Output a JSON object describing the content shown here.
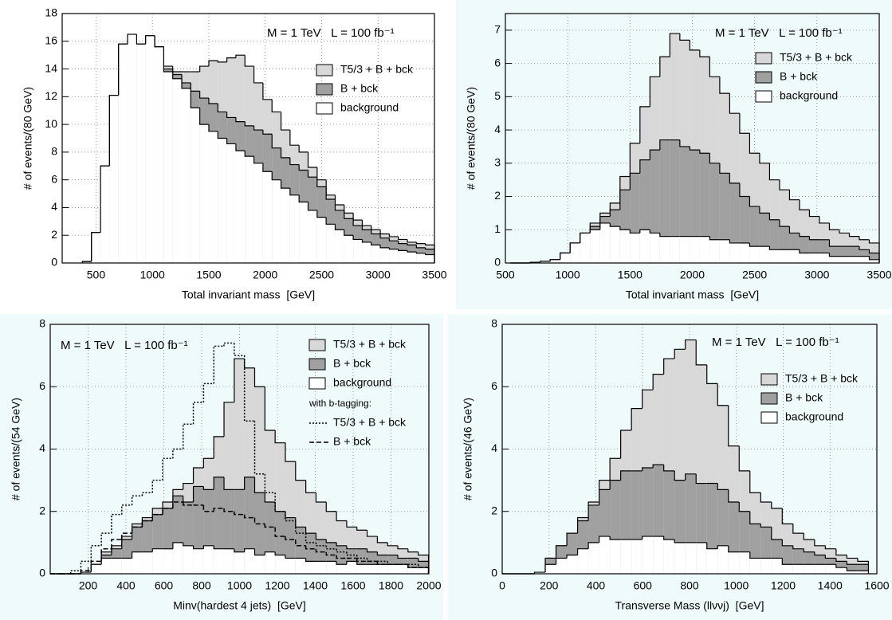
{
  "chart_data": [
    {
      "type": "histogram",
      "annotation": "M = 1 TeV   L = 100 fb⁻¹",
      "xlabel": "Total invariant mass  [GeV]",
      "ylabel": "# of events/(80 GeV)",
      "xlim": [
        200,
        3500
      ],
      "ylim": [
        0,
        18
      ],
      "xticks": [
        500,
        1000,
        1500,
        2000,
        2500,
        3000,
        3500
      ],
      "yticks": [
        0,
        2,
        4,
        6,
        8,
        10,
        12,
        14,
        16,
        18
      ],
      "grid": true,
      "bins": [
        380,
        460,
        540,
        620,
        700,
        780,
        860,
        940,
        1020,
        1100,
        1180,
        1260,
        1340,
        1420,
        1500,
        1580,
        1660,
        1740,
        1820,
        1900,
        1980,
        2060,
        2140,
        2220,
        2300,
        2380,
        2460,
        2540,
        2620,
        2700,
        2780,
        2860,
        2940,
        3020,
        3100,
        3180,
        3260,
        3340,
        3420,
        3500
      ],
      "series": [
        {
          "name": "T5/3 + B + bck",
          "color": "#d8d8d8",
          "style": "fill",
          "values": [
            0.1,
            2.2,
            7,
            12.1,
            15.8,
            16.5,
            15.8,
            16.4,
            15.6,
            14.2,
            13.8,
            13.8,
            13.8,
            14.2,
            14.6,
            14.5,
            14.8,
            15.0,
            14.2,
            13.0,
            11.8,
            10.9,
            9.6,
            8.5,
            8.0,
            6.9,
            6.0,
            4.9,
            4.2,
            3.6,
            3.1,
            2.7,
            2.4,
            2.1,
            1.9,
            1.7,
            1.5,
            1.4,
            1.3
          ]
        },
        {
          "name": "B + bck",
          "color": "#a0a0a0",
          "style": "fill",
          "values": [
            0.1,
            2.2,
            7,
            12.1,
            15.8,
            16.5,
            15.8,
            16.4,
            15.6,
            14.0,
            13.6,
            13.0,
            12.4,
            11.9,
            11.5,
            10.9,
            10.5,
            10.2,
            9.9,
            9.6,
            9.3,
            8.3,
            7.6,
            7.1,
            6.7,
            6.2,
            5.5,
            4.6,
            3.8,
            3.2,
            2.7,
            2.4,
            2.1,
            1.8,
            1.6,
            1.4,
            1.3,
            1.1,
            1.0
          ]
        },
        {
          "name": "background",
          "color": "#ffffff",
          "style": "fill",
          "values": [
            0.1,
            2.2,
            7,
            12.1,
            15.8,
            16.5,
            15.8,
            16.4,
            15.6,
            13.8,
            13.3,
            12.6,
            11.2,
            10.0,
            9.5,
            9.0,
            8.6,
            8.1,
            7.7,
            7.2,
            6.6,
            6.0,
            5.4,
            4.9,
            4.4,
            3.8,
            3.3,
            2.8,
            2.4,
            2.0,
            1.7,
            1.5,
            1.3,
            1.1,
            1.0,
            0.9,
            0.8,
            0.7,
            0.6
          ]
        }
      ]
    },
    {
      "type": "histogram",
      "annotation": "M = 1 TeV   L = 100 fb⁻¹",
      "xlabel": "Total invariant mass  [GeV]",
      "ylabel": "# of events/(80 GeV)",
      "xlim": [
        500,
        3500
      ],
      "ylim": [
        0,
        7.5
      ],
      "xticks": [
        500,
        1000,
        1500,
        2000,
        2500,
        3000,
        3500
      ],
      "yticks": [
        0,
        1,
        2,
        3,
        4,
        5,
        6,
        7
      ],
      "grid": true,
      "bins": [
        540,
        620,
        700,
        780,
        860,
        940,
        1020,
        1100,
        1180,
        1260,
        1340,
        1420,
        1500,
        1580,
        1660,
        1740,
        1820,
        1900,
        1980,
        2060,
        2140,
        2220,
        2300,
        2380,
        2460,
        2540,
        2620,
        2700,
        2780,
        2860,
        2940,
        3020,
        3100,
        3180,
        3260,
        3340,
        3420,
        3500
      ],
      "series": [
        {
          "name": "T5/3 + B + bck",
          "color": "#d8d8d8",
          "style": "fill",
          "values": [
            0,
            0,
            0.02,
            0.05,
            0.1,
            0.3,
            0.6,
            0.9,
            1.2,
            1.5,
            1.8,
            2.6,
            3.6,
            4.7,
            5.6,
            6.2,
            6.9,
            6.7,
            6.4,
            6.2,
            5.6,
            5.1,
            4.5,
            3.9,
            3.3,
            3.0,
            2.5,
            2.2,
            1.9,
            1.6,
            1.4,
            1.2,
            1.0,
            0.9,
            0.8,
            0.7,
            0.6
          ]
        },
        {
          "name": "B + bck",
          "color": "#a0a0a0",
          "style": "fill",
          "values": [
            0,
            0,
            0.02,
            0.05,
            0.1,
            0.3,
            0.6,
            0.9,
            1.1,
            1.4,
            1.6,
            2.2,
            2.7,
            3.1,
            3.4,
            3.7,
            3.7,
            3.5,
            3.4,
            3.3,
            3.0,
            2.7,
            2.4,
            2.0,
            1.7,
            1.5,
            1.3,
            1.1,
            0.9,
            0.8,
            0.7,
            0.7,
            0.5,
            0.5,
            0.5,
            0.4,
            0.3
          ]
        },
        {
          "name": "background",
          "color": "#ffffff",
          "style": "fill",
          "values": [
            0,
            0,
            0.02,
            0.05,
            0.1,
            0.3,
            0.6,
            0.9,
            1.0,
            1.2,
            1.1,
            1.0,
            0.9,
            1.0,
            0.9,
            0.8,
            0.8,
            0.8,
            0.8,
            0.8,
            0.7,
            0.7,
            0.6,
            0.6,
            0.5,
            0.5,
            0.4,
            0.4,
            0.4,
            0.3,
            0.3,
            0.3,
            0.2,
            0.2,
            0.2,
            0.2,
            0.1
          ]
        }
      ]
    },
    {
      "type": "histogram",
      "annotation": "M = 1 TeV   L = 100 fb⁻¹",
      "xlabel": "Minv(hardest 4 jets)  [GeV]",
      "ylabel": "# of events/(54 GeV)",
      "legend_note": "with b-tagging:",
      "xlim": [
        0,
        2000
      ],
      "ylim": [
        0,
        8
      ],
      "xticks": [
        200,
        400,
        600,
        800,
        1000,
        1200,
        1400,
        1600,
        1800,
        2000
      ],
      "yticks": [
        0,
        2,
        4,
        6,
        8
      ],
      "grid": true,
      "bins": [
        0,
        54,
        108,
        162,
        216,
        270,
        324,
        378,
        432,
        486,
        540,
        594,
        648,
        702,
        756,
        810,
        864,
        918,
        972,
        1026,
        1080,
        1134,
        1188,
        1242,
        1296,
        1350,
        1404,
        1458,
        1512,
        1566,
        1620,
        1674,
        1728,
        1782,
        1836,
        1890,
        1944,
        1998
      ],
      "series": [
        {
          "name": "T5/3 + B + bck",
          "color": "#d8d8d8",
          "style": "fill",
          "values": [
            0,
            0,
            0,
            0.05,
            0.3,
            0.7,
            0.9,
            1.2,
            1.6,
            1.8,
            2.1,
            2.3,
            2.7,
            2.9,
            3.4,
            3.7,
            4.4,
            5.5,
            6.9,
            6.6,
            6.0,
            4.6,
            4.2,
            3.6,
            3.0,
            2.6,
            2.3,
            2.0,
            1.7,
            1.5,
            1.4,
            1.2,
            1.0,
            0.9,
            0.8,
            0.7,
            0.6
          ]
        },
        {
          "name": "B + bck",
          "color": "#a0a0a0",
          "style": "fill",
          "values": [
            0,
            0,
            0,
            0.05,
            0.3,
            0.6,
            0.8,
            1.1,
            1.5,
            1.7,
            1.9,
            2.1,
            2.5,
            2.3,
            2.8,
            2.7,
            3.1,
            2.7,
            2.7,
            3.1,
            2.6,
            2.3,
            2.0,
            1.8,
            1.5,
            1.3,
            1.1,
            1.0,
            0.9,
            0.8,
            0.8,
            0.7,
            0.6,
            0.6,
            0.5,
            0.5,
            0.4
          ]
        },
        {
          "name": "background",
          "color": "#ffffff",
          "style": "fill",
          "values": [
            0,
            0,
            0,
            0.05,
            0.3,
            0.5,
            0.5,
            0.5,
            0.7,
            0.7,
            0.8,
            0.8,
            1.0,
            0.9,
            0.8,
            0.9,
            0.8,
            0.8,
            0.7,
            0.8,
            0.6,
            0.7,
            0.6,
            0.5,
            0.5,
            0.4,
            0.4,
            0.4,
            0.3,
            0.4,
            0.3,
            0.3,
            0.3,
            0.3,
            0.3,
            0.2,
            0.2
          ]
        },
        {
          "name": "T5/3 + B + bck",
          "color": "#000000",
          "style": "dotted",
          "values": [
            0,
            0,
            0.1,
            0.4,
            0.9,
            1.3,
            1.9,
            2.2,
            2.5,
            2.6,
            3.0,
            3.7,
            4.0,
            4.8,
            5.5,
            6.1,
            7.3,
            7.4,
            7.0,
            4.9,
            3.2,
            2.6,
            2.0,
            1.7,
            1.3,
            1.0,
            0.9,
            0.8,
            0.7,
            0.6,
            0.5,
            0.4,
            0.4,
            0.3,
            0.3,
            0.3,
            0.2
          ]
        },
        {
          "name": "B + bck",
          "color": "#000000",
          "style": "dashed",
          "values": [
            0,
            0,
            0,
            0.1,
            0.4,
            0.8,
            1.1,
            1.3,
            1.5,
            1.7,
            1.9,
            2.1,
            2.3,
            2.2,
            2.2,
            2.0,
            2.1,
            2.0,
            1.9,
            1.8,
            1.6,
            1.5,
            1.2,
            1.1,
            0.9,
            0.8,
            0.7,
            0.6,
            0.5,
            0.5,
            0.4,
            0.4,
            0.3,
            0.3,
            0.3,
            0.2,
            0.2
          ]
        }
      ]
    },
    {
      "type": "histogram",
      "annotation": "M = 1 TeV   L = 100 fb⁻¹",
      "xlabel": "Transverse Mass (llννj)  [GeV]",
      "ylabel": "# of events/(46 GeV)",
      "xlim": [
        0,
        1600
      ],
      "ylim": [
        0,
        8
      ],
      "xticks": [
        0,
        200,
        400,
        600,
        800,
        1000,
        1200,
        1400,
        1600
      ],
      "yticks": [
        0,
        2,
        4,
        6,
        8
      ],
      "grid": true,
      "bins": [
        0,
        46,
        92,
        138,
        184,
        230,
        276,
        322,
        368,
        414,
        460,
        506,
        552,
        598,
        644,
        690,
        736,
        782,
        828,
        874,
        920,
        966,
        1012,
        1058,
        1104,
        1150,
        1196,
        1242,
        1288,
        1334,
        1380,
        1426,
        1472,
        1518,
        1564
      ],
      "series": [
        {
          "name": "T5/3 + B + bck",
          "color": "#d8d8d8",
          "style": "fill",
          "values": [
            0,
            0,
            0,
            0.05,
            0.5,
            0.9,
            1.3,
            1.8,
            2.3,
            3.0,
            3.7,
            4.6,
            5.3,
            5.9,
            6.4,
            6.9,
            7.2,
            7.5,
            6.7,
            6.1,
            5.4,
            4.1,
            3.3,
            2.6,
            2.3,
            2.1,
            1.6,
            1.3,
            1.1,
            0.9,
            0.8,
            0.6,
            0.5,
            0.4
          ]
        },
        {
          "name": "B + bck",
          "color": "#a0a0a0",
          "style": "fill",
          "values": [
            0,
            0,
            0,
            0.05,
            0.5,
            0.9,
            1.3,
            1.7,
            2.2,
            2.7,
            3.0,
            3.3,
            3.3,
            3.4,
            3.5,
            3.3,
            3.0,
            3.2,
            2.9,
            2.9,
            2.7,
            2.3,
            2.0,
            1.6,
            1.5,
            1.1,
            0.9,
            0.8,
            0.7,
            0.6,
            0.5,
            0.4,
            0.3,
            0.3
          ]
        },
        {
          "name": "background",
          "color": "#ffffff",
          "style": "fill",
          "values": [
            0,
            0,
            0,
            0.05,
            0.3,
            0.5,
            0.6,
            0.8,
            1.0,
            1.2,
            1.1,
            1.1,
            1.1,
            1.2,
            1.2,
            1.1,
            1.0,
            1.0,
            1.0,
            0.8,
            0.9,
            0.7,
            0.7,
            0.5,
            0.5,
            0.5,
            0.3,
            0.3,
            0.3,
            0.3,
            0.3,
            0.2,
            0.1,
            0.1
          ]
        }
      ]
    }
  ]
}
